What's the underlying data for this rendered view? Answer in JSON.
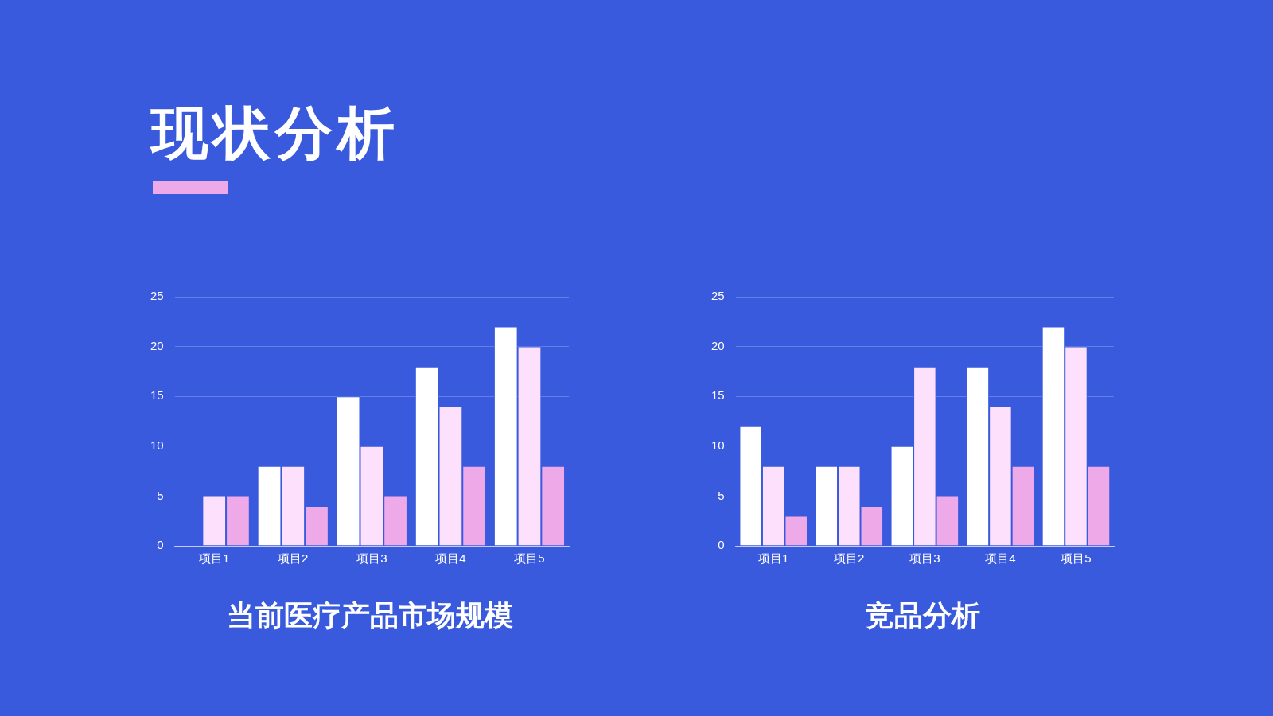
{
  "chart_data": [
    {
      "type": "bar",
      "title": "当前医疗产品市场规模",
      "annotations": [
        "现状分析"
      ],
      "categories": [
        "项目1",
        "项目2",
        "项目3",
        "项目4",
        "项目5"
      ],
      "series": [
        {
          "color": "#ffffff",
          "values": [
            0,
            8,
            15,
            18,
            22
          ]
        },
        {
          "color": "#fde0fb",
          "values": [
            5,
            8,
            10,
            14,
            20
          ]
        },
        {
          "color": "#eeaae8",
          "values": [
            5,
            4,
            5,
            8,
            8
          ]
        }
      ],
      "ylim": [
        0,
        25
      ],
      "yticks": [
        0,
        5,
        10,
        15,
        20,
        25
      ],
      "grid": "y",
      "legend": false
    },
    {
      "type": "bar",
      "title": "竞品分析",
      "categories": [
        "项目1",
        "项目2",
        "项目3",
        "项目4",
        "项目5"
      ],
      "series": [
        {
          "color": "#ffffff",
          "values": [
            12,
            8,
            10,
            18,
            22
          ]
        },
        {
          "color": "#fde0fb",
          "values": [
            8,
            8,
            18,
            14,
            20
          ]
        },
        {
          "color": "#eeaae8",
          "values": [
            3,
            4,
            5,
            8,
            8
          ]
        }
      ],
      "ylim": [
        0,
        25
      ],
      "yticks": [
        0,
        5,
        10,
        15,
        20,
        25
      ],
      "grid": "y",
      "legend": false
    }
  ]
}
